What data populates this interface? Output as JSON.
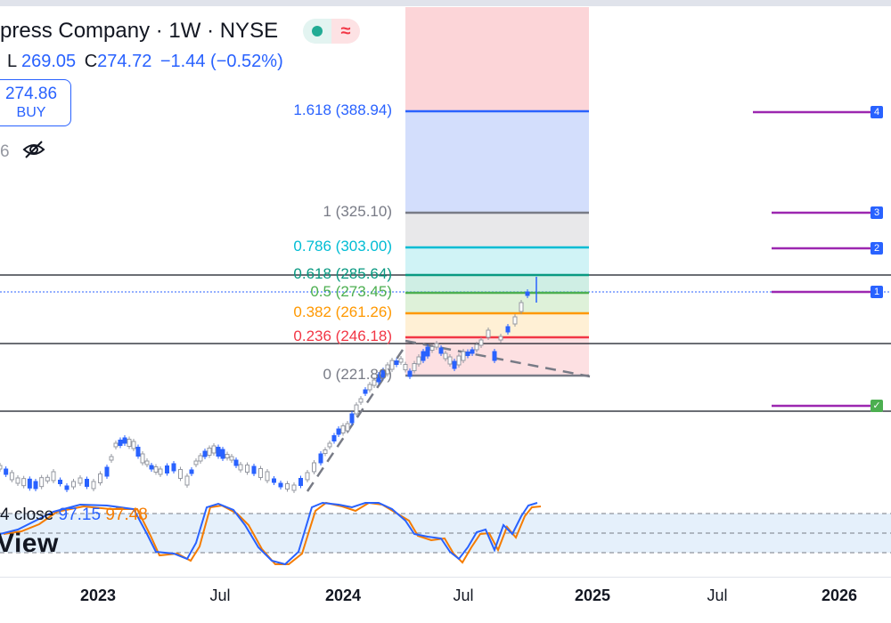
{
  "header": {
    "title": "press Company · 1W · NYSE",
    "ohlc_low_label": "L",
    "ohlc_low_value": "269.05",
    "ohlc_close_value": "274.72",
    "ohlc_change": "−1.44 (−0.52%)",
    "status_wave": "≈"
  },
  "trade": {
    "buy_price": "274.86",
    "buy_label": "BUY"
  },
  "visibility": {
    "count": "6"
  },
  "oscillator": {
    "legend_prefix": "4 close",
    "k_value": "97.15",
    "d_value": "97.48"
  },
  "watermark": "View",
  "fib_levels": [
    {
      "label": "1.618 (388.94)",
      "color": "#2962ff",
      "price": 388.94
    },
    {
      "label": "1 (325.10)",
      "color": "#787b86",
      "price": 325.1
    },
    {
      "label": "0.786 (303.00)",
      "color": "#00bcd4",
      "price": 303.0
    },
    {
      "label": "0.618 (285.64)",
      "color": "#089981",
      "price": 285.64
    },
    {
      "label": "0.5 (273.45)",
      "color": "#4caf50",
      "price": 273.45
    },
    {
      "label": "0.382 (261.26)",
      "color": "#ff9800",
      "price": 261.26
    },
    {
      "label": "0.236 (246.18)",
      "color": "#f23645",
      "price": 246.18
    },
    {
      "label": "0 (221.80)",
      "color": "#787b86",
      "price": 221.8
    }
  ],
  "alerts": [
    {
      "label": "4",
      "color": "#2962ff"
    },
    {
      "label": "3",
      "color": "#2962ff"
    },
    {
      "label": "2",
      "color": "#2962ff"
    },
    {
      "label": "1",
      "color": "#2962ff"
    },
    {
      "label": "✓",
      "color": "#4caf50"
    }
  ],
  "xaxis": [
    {
      "label": "2023",
      "bold": true
    },
    {
      "label": "Jul",
      "bold": false
    },
    {
      "label": "2024",
      "bold": true
    },
    {
      "label": "Jul",
      "bold": false
    },
    {
      "label": "2025",
      "bold": true
    },
    {
      "label": "Jul",
      "bold": false
    },
    {
      "label": "2026",
      "bold": true
    }
  ],
  "colors": {
    "up": "#2962ff",
    "down": "#2962ff",
    "purple": "#9c27b0",
    "k_line": "#2962ff",
    "d_line": "#f57c00"
  }
}
